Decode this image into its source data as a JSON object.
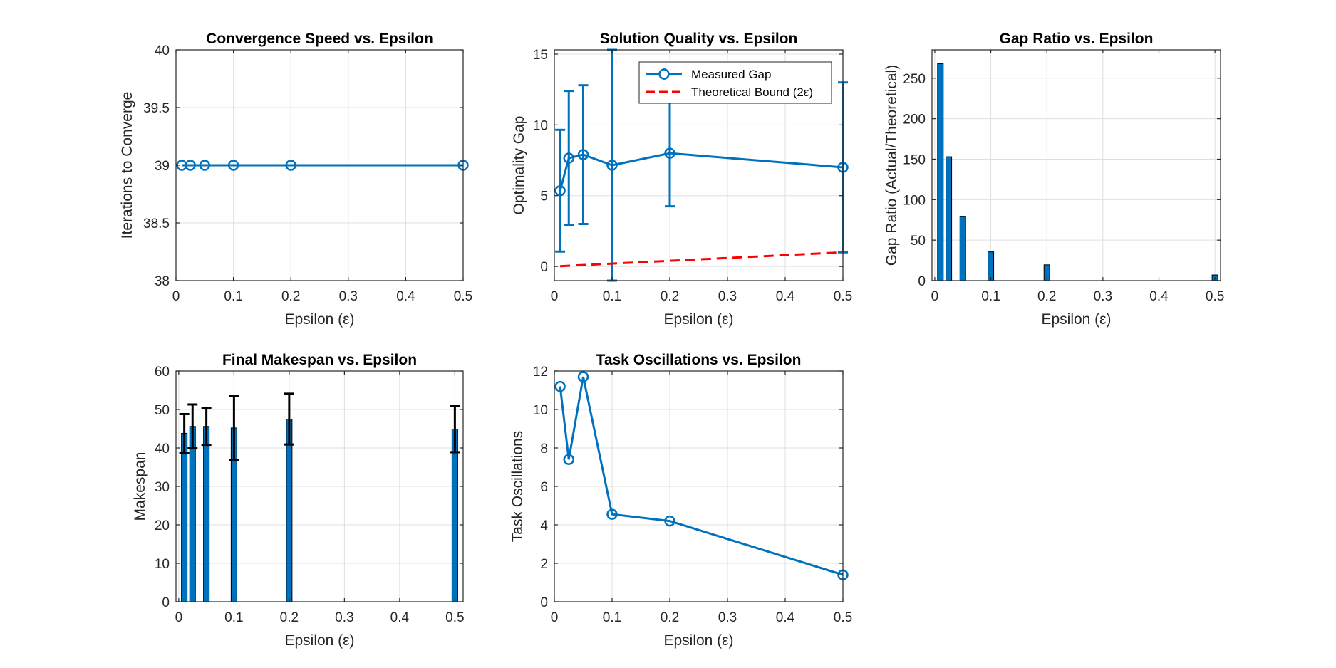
{
  "chart_data": [
    {
      "type": "line",
      "title": "Convergence Speed vs. Epsilon",
      "xlabel": "Epsilon (ε)",
      "ylabel": "Iterations to Converge",
      "xlim": [
        0,
        0.5
      ],
      "ylim": [
        38,
        40
      ],
      "xticks": [
        "0",
        "0.1",
        "0.2",
        "0.3",
        "0.4",
        "0.5"
      ],
      "yticks": [
        "38",
        "38.5",
        "39",
        "39.5",
        "40"
      ],
      "grid": true,
      "color": "#0072BD",
      "x": [
        0.01,
        0.025,
        0.05,
        0.1,
        0.2,
        0.5
      ],
      "series": [
        {
          "values": [
            39,
            39,
            39,
            39,
            39,
            39
          ]
        }
      ]
    },
    {
      "type": "line",
      "title": "Solution Quality vs. Epsilon",
      "xlabel": "Epsilon (ε)",
      "ylabel": "Optimality Gap",
      "xlim": [
        0,
        0.5
      ],
      "ylim": [
        -1,
        15.3
      ],
      "xticks": [
        "0",
        "0.1",
        "0.2",
        "0.3",
        "0.4",
        "0.5"
      ],
      "yticks": [
        "0",
        "5",
        "10",
        "15"
      ],
      "grid": true,
      "legend_position": "top-right",
      "x": [
        0.01,
        0.025,
        0.05,
        0.1,
        0.2,
        0.5
      ],
      "series": [
        {
          "name": "Measured Gap",
          "color": "#0072BD",
          "values": [
            5.35,
            7.65,
            7.9,
            7.15,
            8.0,
            7.0
          ],
          "errors": [
            4.3,
            4.75,
            4.9,
            8.15,
            3.75,
            6.0
          ]
        },
        {
          "name": "Theoretical Bound (2ε)",
          "color": "#FF0000",
          "style": "dashed",
          "values": [
            0.02,
            0.05,
            0.1,
            0.2,
            0.4,
            1.0
          ]
        }
      ]
    },
    {
      "type": "bar",
      "title": "Gap Ratio vs. Epsilon",
      "xlabel": "Epsilon (ε)",
      "ylabel": "Gap Ratio (Actual/Theoretical)",
      "xlim": [
        -0.005,
        0.51
      ],
      "ylim": [
        0,
        285
      ],
      "xticks": [
        "0",
        "0.1",
        "0.2",
        "0.3",
        "0.4",
        "0.5"
      ],
      "yticks": [
        "0",
        "50",
        "100",
        "150",
        "200",
        "250"
      ],
      "grid": true,
      "color": "#0072BD",
      "x": [
        0.01,
        0.025,
        0.05,
        0.1,
        0.2,
        0.5
      ],
      "values": [
        268,
        153,
        79,
        35.5,
        19.5,
        7
      ]
    },
    {
      "type": "bar",
      "title": "Final Makespan vs. Epsilon",
      "xlabel": "Epsilon (ε)",
      "ylabel": "Makespan",
      "xlim": [
        -0.005,
        0.515
      ],
      "ylim": [
        0,
        60
      ],
      "xticks": [
        "0",
        "0.1",
        "0.2",
        "0.3",
        "0.4",
        "0.5"
      ],
      "yticks": [
        "0",
        "10",
        "20",
        "30",
        "40",
        "50",
        "60"
      ],
      "grid": true,
      "color": "#0072BD",
      "x": [
        0.01,
        0.025,
        0.05,
        0.1,
        0.2,
        0.5
      ],
      "values": [
        43.8,
        45.6,
        45.6,
        45.2,
        47.5,
        44.9
      ],
      "errors": [
        5.0,
        5.7,
        4.8,
        8.4,
        6.6,
        6.0
      ]
    },
    {
      "type": "line",
      "title": "Task Oscillations vs. Epsilon",
      "xlabel": "Epsilon (ε)",
      "ylabel": "Task Oscillations",
      "xlim": [
        0,
        0.5
      ],
      "ylim": [
        0,
        12
      ],
      "xticks": [
        "0",
        "0.1",
        "0.2",
        "0.3",
        "0.4",
        "0.5"
      ],
      "yticks": [
        "0",
        "2",
        "4",
        "6",
        "8",
        "10",
        "12"
      ],
      "grid": true,
      "color": "#0072BD",
      "x": [
        0.01,
        0.025,
        0.05,
        0.1,
        0.2,
        0.5
      ],
      "series": [
        {
          "values": [
            11.2,
            7.4,
            11.7,
            4.55,
            4.2,
            1.4
          ]
        }
      ]
    }
  ]
}
